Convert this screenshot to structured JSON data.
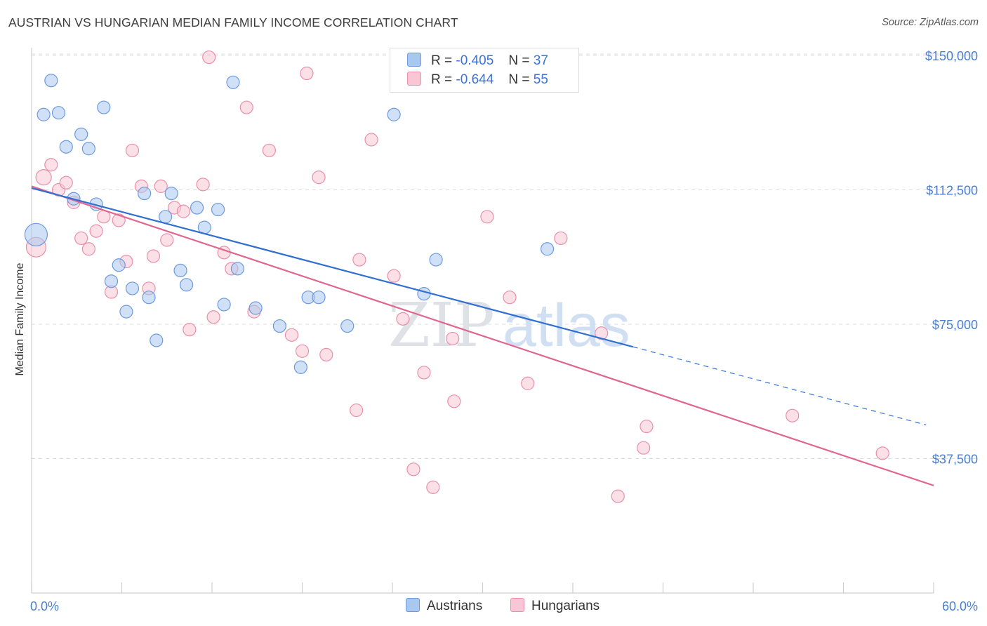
{
  "title": "AUSTRIAN VS HUNGARIAN MEDIAN FAMILY INCOME CORRELATION CHART",
  "source": "Source: ZipAtlas.com",
  "watermark": {
    "zip": "ZIP",
    "atlas": "atlas"
  },
  "legend_stats": [
    {
      "r_label": "R =",
      "r_value": "-0.405",
      "n_label": "N =",
      "n_value": "37",
      "color": "#a9c8f0",
      "border": "#6b9ae0"
    },
    {
      "r_label": "R =",
      "r_value": "-0.644",
      "n_label": "N =",
      "n_value": "55",
      "color": "#f8c6d4",
      "border": "#ea8faa"
    }
  ],
  "colors": {
    "austrians_fill": "#a9c8f0",
    "austrians_stroke": "#6b9ae0",
    "austrians_line": "#2f6fd0",
    "hungarians_fill": "#f8c6d4",
    "hungarians_stroke": "#ea8faa",
    "hungarians_line": "#e0668f",
    "axis_text": "#4a7fd0",
    "grid": "#dddddd"
  },
  "chart_data": {
    "type": "scatter",
    "title": "AUSTRIAN VS HUNGARIAN MEDIAN FAMILY INCOME CORRELATION CHART",
    "xlabel": "",
    "ylabel": "Median Family Income",
    "xlim": [
      0,
      60
    ],
    "ylim": [
      0,
      155000
    ],
    "x_tick_labels": [
      "0.0%",
      "60.0%"
    ],
    "y_ticks": [
      37500,
      75000,
      112500,
      150000
    ],
    "y_tick_labels": [
      "$37,500",
      "$75,000",
      "$112,500",
      "$150,000"
    ],
    "grid": true,
    "legend_position": "bottom-center",
    "series": [
      {
        "name": "Austrians",
        "points": [
          [
            0.3,
            100000,
            16
          ],
          [
            1.3,
            143000,
            9
          ],
          [
            0.8,
            133500,
            9
          ],
          [
            1.8,
            134000,
            9
          ],
          [
            4.8,
            135500,
            9
          ],
          [
            3.3,
            128000,
            9
          ],
          [
            2.3,
            124500,
            9
          ],
          [
            3.8,
            124000,
            9
          ],
          [
            13.4,
            142500,
            9
          ],
          [
            24.1,
            133500,
            9
          ],
          [
            2.8,
            110000,
            9
          ],
          [
            4.3,
            108500,
            9
          ],
          [
            7.5,
            111500,
            9
          ],
          [
            9.3,
            111500,
            9
          ],
          [
            11.0,
            107500,
            9
          ],
          [
            12.4,
            107000,
            9
          ],
          [
            8.9,
            105000,
            9
          ],
          [
            11.5,
            102000,
            9
          ],
          [
            5.8,
            91500,
            9
          ],
          [
            9.9,
            90000,
            9
          ],
          [
            13.7,
            90500,
            9
          ],
          [
            5.3,
            87000,
            9
          ],
          [
            10.3,
            86000,
            9
          ],
          [
            6.7,
            85000,
            9
          ],
          [
            7.8,
            82500,
            9
          ],
          [
            18.4,
            82500,
            9
          ],
          [
            19.1,
            82500,
            9
          ],
          [
            6.3,
            78500,
            9
          ],
          [
            12.8,
            80500,
            9
          ],
          [
            14.9,
            79500,
            9
          ],
          [
            16.5,
            74500,
            9
          ],
          [
            21.0,
            74500,
            9
          ],
          [
            8.3,
            70500,
            9
          ],
          [
            17.9,
            63000,
            9
          ],
          [
            26.9,
            93000,
            9
          ],
          [
            34.3,
            96000,
            9
          ],
          [
            26.1,
            83500,
            9
          ]
        ]
      },
      {
        "name": "Hungarians",
        "points": [
          [
            0.3,
            96500,
            14
          ],
          [
            0.8,
            116000,
            11
          ],
          [
            1.3,
            119500,
            9
          ],
          [
            1.8,
            112500,
            9
          ],
          [
            2.3,
            114500,
            9
          ],
          [
            2.8,
            109000,
            9
          ],
          [
            3.3,
            99000,
            9
          ],
          [
            3.8,
            96000,
            9
          ],
          [
            4.3,
            101000,
            9
          ],
          [
            4.8,
            105000,
            9
          ],
          [
            5.3,
            84000,
            9
          ],
          [
            5.8,
            104000,
            9
          ],
          [
            6.3,
            92500,
            9
          ],
          [
            6.7,
            123500,
            9
          ],
          [
            7.3,
            113500,
            9
          ],
          [
            7.8,
            85000,
            9
          ],
          [
            8.1,
            94000,
            9
          ],
          [
            8.6,
            113500,
            9
          ],
          [
            9.0,
            98500,
            9
          ],
          [
            9.5,
            107500,
            9
          ],
          [
            10.1,
            106500,
            9
          ],
          [
            10.5,
            73500,
            9
          ],
          [
            11.4,
            114000,
            9
          ],
          [
            11.8,
            149500,
            9
          ],
          [
            12.1,
            77000,
            9
          ],
          [
            12.8,
            95000,
            9
          ],
          [
            13.3,
            90500,
            9
          ],
          [
            14.3,
            135500,
            9
          ],
          [
            14.8,
            78500,
            9
          ],
          [
            15.8,
            123500,
            9
          ],
          [
            17.3,
            72000,
            9
          ],
          [
            18.0,
            67500,
            9
          ],
          [
            18.3,
            145000,
            9
          ],
          [
            19.1,
            116000,
            9
          ],
          [
            19.6,
            66500,
            9
          ],
          [
            21.6,
            51000,
            9
          ],
          [
            21.8,
            93000,
            9
          ],
          [
            22.6,
            126500,
            9
          ],
          [
            24.1,
            88500,
            9
          ],
          [
            24.7,
            76500,
            9
          ],
          [
            25.4,
            34500,
            9
          ],
          [
            26.1,
            61500,
            9
          ],
          [
            26.7,
            29500,
            9
          ],
          [
            28.1,
            53500,
            9
          ],
          [
            28.0,
            71000,
            9
          ],
          [
            30.3,
            105000,
            9
          ],
          [
            31.8,
            82500,
            9
          ],
          [
            33.0,
            58500,
            9
          ],
          [
            35.2,
            99000,
            9
          ],
          [
            37.9,
            72500,
            9
          ],
          [
            39.0,
            27000,
            9
          ],
          [
            40.7,
            40500,
            9
          ],
          [
            40.9,
            46500,
            9
          ],
          [
            50.6,
            49500,
            9
          ],
          [
            56.6,
            39000,
            9
          ]
        ]
      }
    ],
    "trend_lines": [
      {
        "series": "Austrians",
        "x": [
          0,
          40
        ],
        "y": [
          113000,
          68700
        ],
        "dashed_extension_x": [
          40,
          59.5
        ],
        "dashed_extension_y": [
          68700,
          46900
        ]
      },
      {
        "series": "Hungarians",
        "x": [
          0,
          60
        ],
        "y": [
          113500,
          30000
        ]
      }
    ]
  }
}
